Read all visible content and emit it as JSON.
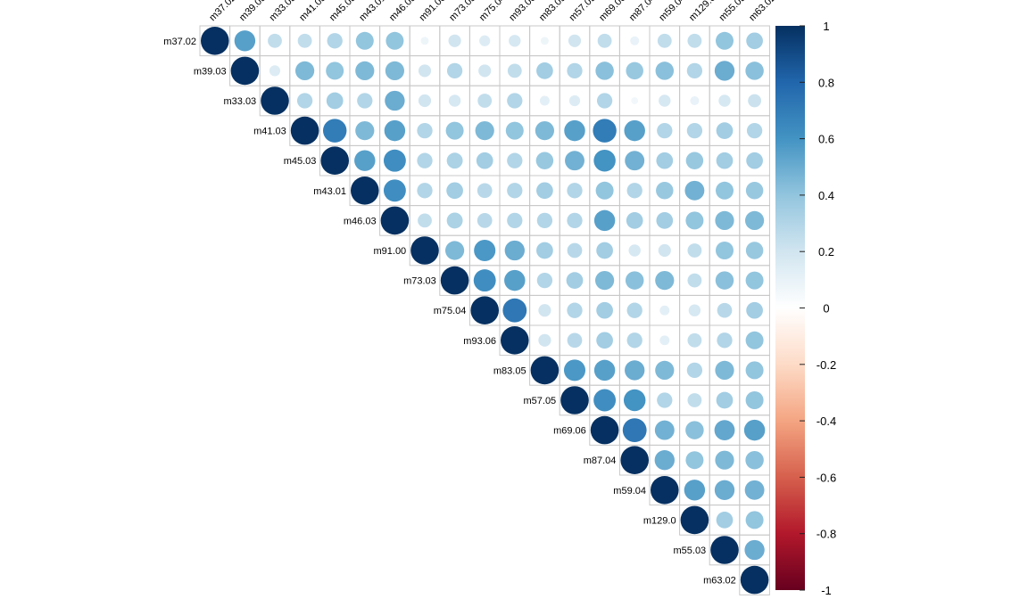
{
  "chart_data": {
    "type": "heatmap",
    "subtype": "corrplot-upper-circle",
    "variables": [
      "m37.02",
      "m39.03",
      "m33.03",
      "m41.03",
      "m45.03",
      "m43.01",
      "m46.03",
      "m91.00",
      "m73.03",
      "m75.04",
      "m93.06",
      "m83.05",
      "m57.05",
      "m69.06",
      "m87.04",
      "m59.04",
      "m129.0",
      "m55.03",
      "m63.02"
    ],
    "matrix": [
      [
        1,
        0.55,
        0.25,
        0.25,
        0.3,
        0.4,
        0.4,
        0.08,
        0.2,
        0.15,
        0.18,
        0.08,
        0.2,
        0.25,
        0.1,
        0.25,
        0.25,
        0.4,
        0.35
      ],
      [
        null,
        1,
        0.15,
        0.45,
        0.4,
        0.45,
        0.45,
        0.2,
        0.3,
        0.2,
        0.25,
        0.35,
        0.3,
        0.42,
        0.38,
        0.42,
        0.3,
        0.5,
        0.42
      ],
      [
        null,
        null,
        1,
        0.3,
        0.35,
        0.3,
        0.5,
        0.2,
        0.18,
        0.25,
        0.3,
        0.12,
        0.15,
        0.3,
        0.06,
        0.18,
        0.1,
        0.18,
        0.22
      ],
      [
        null,
        null,
        null,
        1,
        0.7,
        0.45,
        0.55,
        0.3,
        0.4,
        0.45,
        0.4,
        0.45,
        0.55,
        0.7,
        0.55,
        0.3,
        0.3,
        0.35,
        0.3
      ],
      [
        null,
        null,
        null,
        null,
        1,
        0.55,
        0.62,
        0.3,
        0.32,
        0.35,
        0.3,
        0.38,
        0.48,
        0.6,
        0.48,
        0.35,
        0.38,
        0.35,
        0.35
      ],
      [
        null,
        null,
        null,
        null,
        null,
        1,
        0.62,
        0.3,
        0.35,
        0.28,
        0.3,
        0.35,
        0.3,
        0.4,
        0.3,
        0.38,
        0.48,
        0.4,
        0.38
      ],
      [
        null,
        null,
        null,
        null,
        null,
        null,
        1,
        0.25,
        0.32,
        0.28,
        0.3,
        0.3,
        0.3,
        0.55,
        0.35,
        0.35,
        0.4,
        0.45,
        0.45
      ],
      [
        null,
        null,
        null,
        null,
        null,
        null,
        null,
        1,
        0.45,
        0.58,
        0.5,
        0.35,
        0.28,
        0.35,
        0.18,
        0.2,
        0.25,
        0.4,
        0.38
      ],
      [
        null,
        null,
        null,
        null,
        null,
        null,
        null,
        null,
        1,
        0.62,
        0.55,
        0.3,
        0.35,
        0.45,
        0.42,
        0.45,
        0.25,
        0.42,
        0.4
      ],
      [
        null,
        null,
        null,
        null,
        null,
        null,
        null,
        null,
        null,
        1,
        0.72,
        0.2,
        0.3,
        0.35,
        0.3,
        0.12,
        0.18,
        0.28,
        0.35
      ],
      [
        null,
        null,
        null,
        null,
        null,
        null,
        null,
        null,
        null,
        null,
        1,
        0.2,
        0.28,
        0.35,
        0.3,
        0.12,
        0.25,
        0.3,
        0.4
      ],
      [
        null,
        null,
        null,
        null,
        null,
        null,
        null,
        null,
        null,
        null,
        null,
        1,
        0.58,
        0.55,
        0.5,
        0.45,
        0.3,
        0.45,
        0.4
      ],
      [
        null,
        null,
        null,
        null,
        null,
        null,
        null,
        null,
        null,
        null,
        null,
        null,
        1,
        0.62,
        0.6,
        0.3,
        0.25,
        0.35,
        0.4
      ],
      [
        null,
        null,
        null,
        null,
        null,
        null,
        null,
        null,
        null,
        null,
        null,
        null,
        null,
        1,
        0.72,
        0.48,
        0.42,
        0.52,
        0.55
      ],
      [
        null,
        null,
        null,
        null,
        null,
        null,
        null,
        null,
        null,
        null,
        null,
        null,
        null,
        null,
        1,
        0.5,
        0.4,
        0.45,
        0.42
      ],
      [
        null,
        null,
        null,
        null,
        null,
        null,
        null,
        null,
        null,
        null,
        null,
        null,
        null,
        null,
        null,
        1,
        0.55,
        0.5,
        0.48
      ],
      [
        null,
        null,
        null,
        null,
        null,
        null,
        null,
        null,
        null,
        null,
        null,
        null,
        null,
        null,
        null,
        null,
        1,
        0.35,
        0.4
      ],
      [
        null,
        null,
        null,
        null,
        null,
        null,
        null,
        null,
        null,
        null,
        null,
        null,
        null,
        null,
        null,
        null,
        null,
        1,
        0.5
      ],
      [
        null,
        null,
        null,
        null,
        null,
        null,
        null,
        null,
        null,
        null,
        null,
        null,
        null,
        null,
        null,
        null,
        null,
        null,
        1
      ]
    ],
    "colorbar": {
      "range": [
        -1,
        1
      ],
      "ticks": [
        "1",
        "0.8",
        "0.6",
        "0.4",
        "0.2",
        "0",
        "-0.2",
        "-0.4",
        "-0.6",
        "-0.8",
        "-1"
      ],
      "colors": [
        "#67001F",
        "#B2182B",
        "#D6604D",
        "#F4A582",
        "#FDDBC7",
        "#FFFFFF",
        "#D1E5F0",
        "#92C5DE",
        "#4393C3",
        "#2166AC",
        "#053061"
      ]
    },
    "title": "",
    "grid": true,
    "legend_position": "right"
  }
}
